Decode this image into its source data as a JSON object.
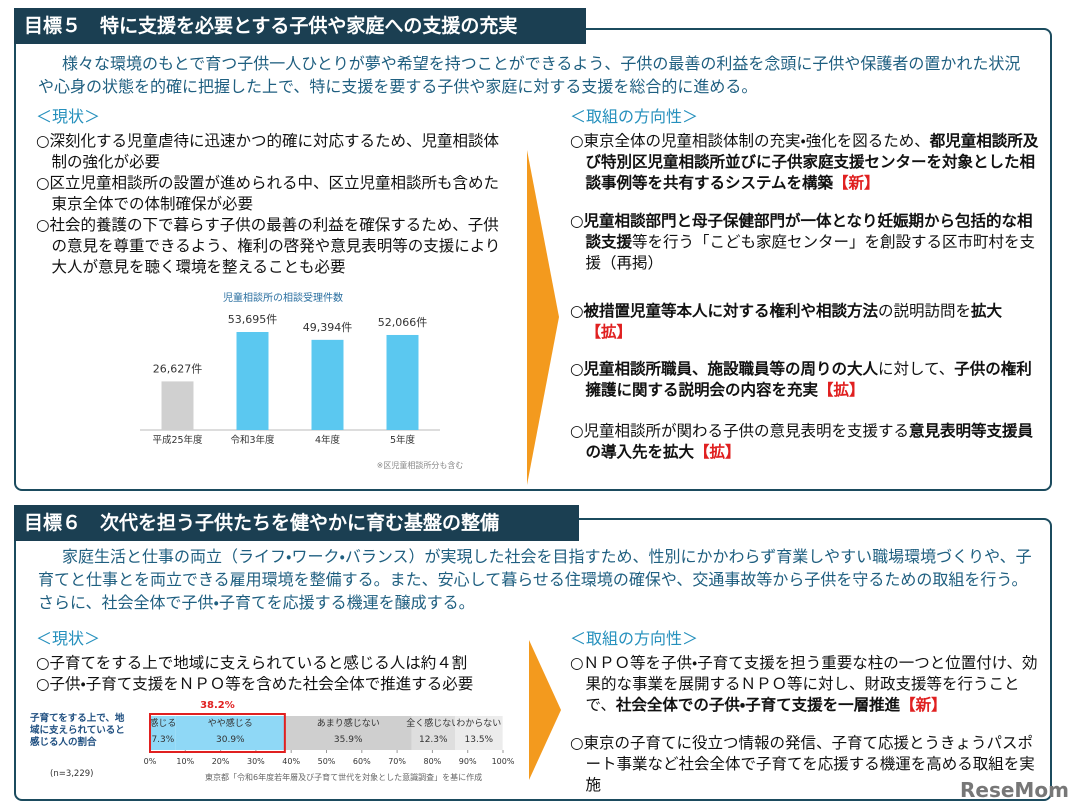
{
  "goal5": {
    "title": "目標５　特に支援を必要とする子供や家庭への支援の充実",
    "intro": "様々な環境のもとで育つ子供一人ひとりが夢や希望を持つことができるよう、子供の最善の利益を念頭に子供や保護者の置かれた状況や心身の状態を的確に把握した上で、特に支援を要する子供や家庭に対する支援を総合的に進める。",
    "current": {
      "heading": "＜現状＞",
      "items": [
        "○深刻化する児童虐待に迅速かつ的確に対応するため、児童相談体制の強化が必要",
        "○区立児童相談所の設置が進められる中、区立児童相談所も含めた東京全体での体制確保が必要",
        "○社会的養護の下で暮らす子供の最善の利益を確保するため、子供の意見を尊重できるよう、権利の啓発や意見表明等の支援により大人が意見を聴く環境を整えることも必要"
      ]
    },
    "chart_data": {
      "type": "bar",
      "title": "児童相談所の相談受理件数",
      "categories": [
        "平成25年度",
        "令和3年度",
        "4年度",
        "5年度"
      ],
      "values": [
        26627,
        53695,
        49394,
        52066
      ],
      "value_labels": [
        "26,627件",
        "53,695件",
        "49,394件",
        "52,066件"
      ],
      "colors": [
        "#d0d0d0",
        "#5bc8f0",
        "#5bc8f0",
        "#5bc8f0"
      ],
      "note": "※区児童相談所分も含む"
    },
    "direction": {
      "heading": "＜取組の方向性＞",
      "items": [
        {
          "segments": [
            {
              "text": "○東京全体の児童相談体制の充実・強化を図るため、",
              "style": "plain"
            },
            {
              "text": "都児童相談所及び特別区児童相談所並びに子供家庭支援センターを対象とした相談事例等を共有するシステムを構築",
              "style": "bold"
            },
            {
              "text": "【新】",
              "style": "tag"
            }
          ]
        },
        {
          "segments": [
            {
              "text": "○児童相談部門と母子保健部門が一体となり妊娠期から包括的な相談支援",
              "style": "bold"
            },
            {
              "text": "等を行う「こども家庭センター」を創設する区市町村を支援（再掲）",
              "style": "plain"
            }
          ]
        },
        {
          "segments": [
            {
              "text": "○被措置児童等本人に対する権利や相談方法",
              "style": "bold"
            },
            {
              "text": "の説明訪問を",
              "style": "plain"
            },
            {
              "text": "拡大",
              "style": "bold"
            },
            {
              "text": "【拡】",
              "style": "tag"
            }
          ]
        },
        {
          "segments": [
            {
              "text": "○児童相談所職員、施設職員等の周りの大人",
              "style": "bold"
            },
            {
              "text": "に対して、",
              "style": "plain"
            },
            {
              "text": "子供の権利擁護に関する説明会の内容を充実",
              "style": "bold"
            },
            {
              "text": "【拡】",
              "style": "tag"
            }
          ]
        },
        {
          "segments": [
            {
              "text": "○児童相談所が関わる子供の意見表明を支援する",
              "style": "plain"
            },
            {
              "text": "意見表明等支援員の導入先を拡大",
              "style": "bold"
            },
            {
              "text": "【拡】",
              "style": "tag"
            }
          ]
        }
      ]
    }
  },
  "goal6": {
    "title": "目標６　次代を担う子供たちを健やかに育む基盤の整備",
    "intro": "家庭生活と仕事の両立（ライフ・ワーク・バランス）が実現した社会を目指すため、性別にかかわらず育業しやすい職場環境づくりや、子育てと仕事とを両立できる雇用環境を整備する。また、安心して暮らせる住環境の確保や、交通事故等から子供を守るための取組を行う。さらに、社会全体で子供・子育てを応援する機運を醸成する。",
    "current": {
      "heading": "＜現状＞",
      "items": [
        "○子育てをする上で地域に支えられていると感じる人は約４割",
        "○子供・子育て支援をＮＰＯ等を含めた社会全体で推進する必要"
      ]
    },
    "chart_data": {
      "type": "stacked-bar",
      "categories": [
        "子育てをする上で、地域に支えられていると感じる人の割合"
      ],
      "series": [
        {
          "name": "感じる",
          "color": "#8fd8f6",
          "values": [
            7.3
          ],
          "value_labels": [
            "7.3%"
          ]
        },
        {
          "name": "やや感じる",
          "color": "#8fd8f6",
          "values": [
            30.9
          ],
          "value_labels": [
            "30.9%"
          ]
        },
        {
          "name": "あまり感じない",
          "color": "#cfcfcf",
          "values": [
            35.9
          ],
          "value_labels": [
            "35.9%"
          ]
        },
        {
          "name": "全く感じない",
          "color": "#dedede",
          "values": [
            12.3
          ],
          "value_labels": [
            "12.3%"
          ]
        },
        {
          "name": "わからない",
          "color": "#ececec",
          "values": [
            13.5
          ],
          "value_labels": [
            "13.5%"
          ]
        }
      ],
      "xlim": [
        0,
        100
      ],
      "xticks": [
        {
          "value": 0,
          "label": "0%"
        },
        {
          "value": 10,
          "label": "10%"
        },
        {
          "value": 20,
          "label": "20%"
        },
        {
          "value": 30,
          "label": "30%"
        },
        {
          "value": 40,
          "label": "40%"
        },
        {
          "value": 50,
          "label": "50%"
        },
        {
          "value": 60,
          "label": "60%"
        },
        {
          "value": 70,
          "label": "70%"
        },
        {
          "value": 80,
          "label": "80%"
        },
        {
          "value": 90,
          "label": "90%"
        },
        {
          "value": 100,
          "label": "100%"
        }
      ],
      "annotation": {
        "value": 38.2,
        "label": "38.2%",
        "color": "#e02020"
      },
      "sample": "(n=3,229)",
      "source": "東京都「令和6年度若年層及び子育て世代を対象とした意識調査」を基に作成"
    },
    "direction": {
      "heading": "＜取組の方向性＞",
      "items": [
        {
          "segments": [
            {
              "text": "○ＮＰＯ等を子供・子育て支援を担う重要な柱の一つと位置付け、効果的な事業を展開するＮＰＯ等に対し、財政支援等を行うことで、",
              "style": "plain"
            },
            {
              "text": "社会全体での子供・子育て支援を一層推進",
              "style": "bold"
            },
            {
              "text": "【新】",
              "style": "tag"
            }
          ]
        },
        {
          "segments": [
            {
              "text": "○東京の子育てに役立つ情報の発信、子育て応援とうきょうパスポート事業など社会全体で子育てを応援する機運を高める取組を実施",
              "style": "plain"
            }
          ]
        }
      ]
    }
  },
  "watermark": "ReseMom"
}
